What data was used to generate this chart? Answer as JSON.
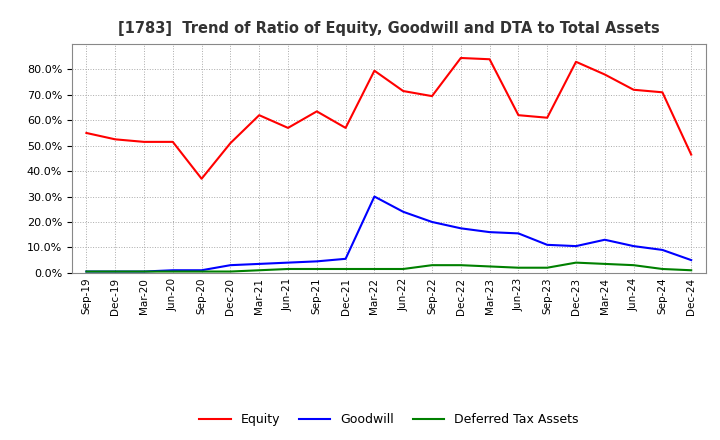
{
  "title": "[1783]  Trend of Ratio of Equity, Goodwill and DTA to Total Assets",
  "x_labels": [
    "Sep-19",
    "Dec-19",
    "Mar-20",
    "Jun-20",
    "Sep-20",
    "Dec-20",
    "Mar-21",
    "Jun-21",
    "Sep-21",
    "Dec-21",
    "Mar-22",
    "Jun-22",
    "Sep-22",
    "Dec-22",
    "Mar-23",
    "Jun-23",
    "Sep-23",
    "Dec-23",
    "Mar-24",
    "Jun-24",
    "Sep-24",
    "Dec-24"
  ],
  "equity": [
    55.0,
    52.5,
    51.5,
    51.5,
    37.0,
    51.0,
    62.0,
    57.0,
    63.5,
    57.0,
    79.5,
    71.5,
    69.5,
    84.5,
    84.0,
    62.0,
    61.0,
    83.0,
    78.0,
    72.0,
    71.0,
    46.5
  ],
  "goodwill": [
    0.5,
    0.5,
    0.5,
    1.0,
    1.0,
    3.0,
    3.5,
    4.0,
    4.5,
    5.5,
    30.0,
    24.0,
    20.0,
    17.5,
    16.0,
    15.5,
    11.0,
    10.5,
    13.0,
    10.5,
    9.0,
    5.0
  ],
  "dta": [
    0.5,
    0.5,
    0.5,
    0.5,
    0.5,
    0.5,
    1.0,
    1.5,
    1.5,
    1.5,
    1.5,
    1.5,
    3.0,
    3.0,
    2.5,
    2.0,
    2.0,
    4.0,
    3.5,
    3.0,
    1.5,
    1.0
  ],
  "equity_color": "#FF0000",
  "goodwill_color": "#0000FF",
  "dta_color": "#008000",
  "ylim": [
    0.0,
    90.0
  ],
  "yticks": [
    0.0,
    10.0,
    20.0,
    30.0,
    40.0,
    50.0,
    60.0,
    70.0,
    80.0
  ],
  "legend_labels": [
    "Equity",
    "Goodwill",
    "Deferred Tax Assets"
  ],
  "background_color": "#FFFFFF",
  "grid_color": "#AAAAAA",
  "title_color": "#333333"
}
